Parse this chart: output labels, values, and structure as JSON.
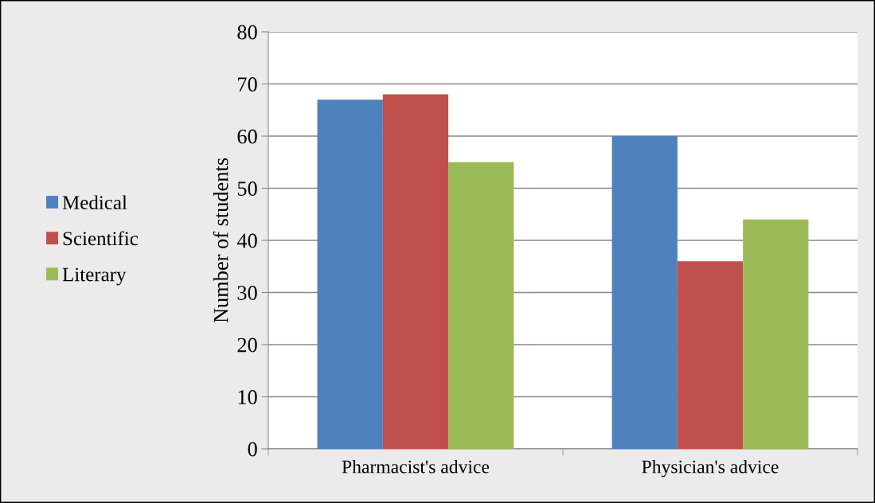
{
  "chart_data": {
    "type": "bar",
    "ylabel": "Number of students",
    "categories": [
      "Pharmacist's advice",
      "Physician's advice"
    ],
    "series": [
      {
        "name": "Medical",
        "color": "#4f81bd",
        "values": [
          67,
          60
        ]
      },
      {
        "name": "Scientific",
        "color": "#c0504d",
        "values": [
          68,
          36
        ]
      },
      {
        "name": "Literary",
        "color": "#9bbb59",
        "values": [
          55,
          44
        ]
      }
    ],
    "ylim": [
      0,
      80
    ],
    "yticks": [
      0,
      10,
      20,
      30,
      40,
      50,
      60,
      70,
      80
    ],
    "grid": "y",
    "legend": "left"
  }
}
